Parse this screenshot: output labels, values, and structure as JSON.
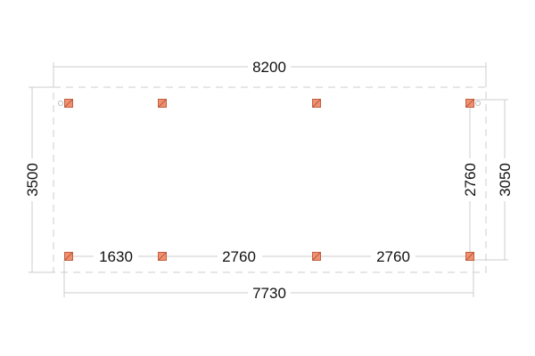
{
  "dimensions": {
    "overall_width": "8200",
    "overall_depth": "3500",
    "post_depth_outer": "3050",
    "post_depth_inner": "2760",
    "post_span_total": "7730",
    "spans": [
      "1630",
      "2760",
      "2760"
    ]
  },
  "colors": {
    "post_fill": "#f09070",
    "post_stroke": "#c06040",
    "line": "#cccccc"
  }
}
